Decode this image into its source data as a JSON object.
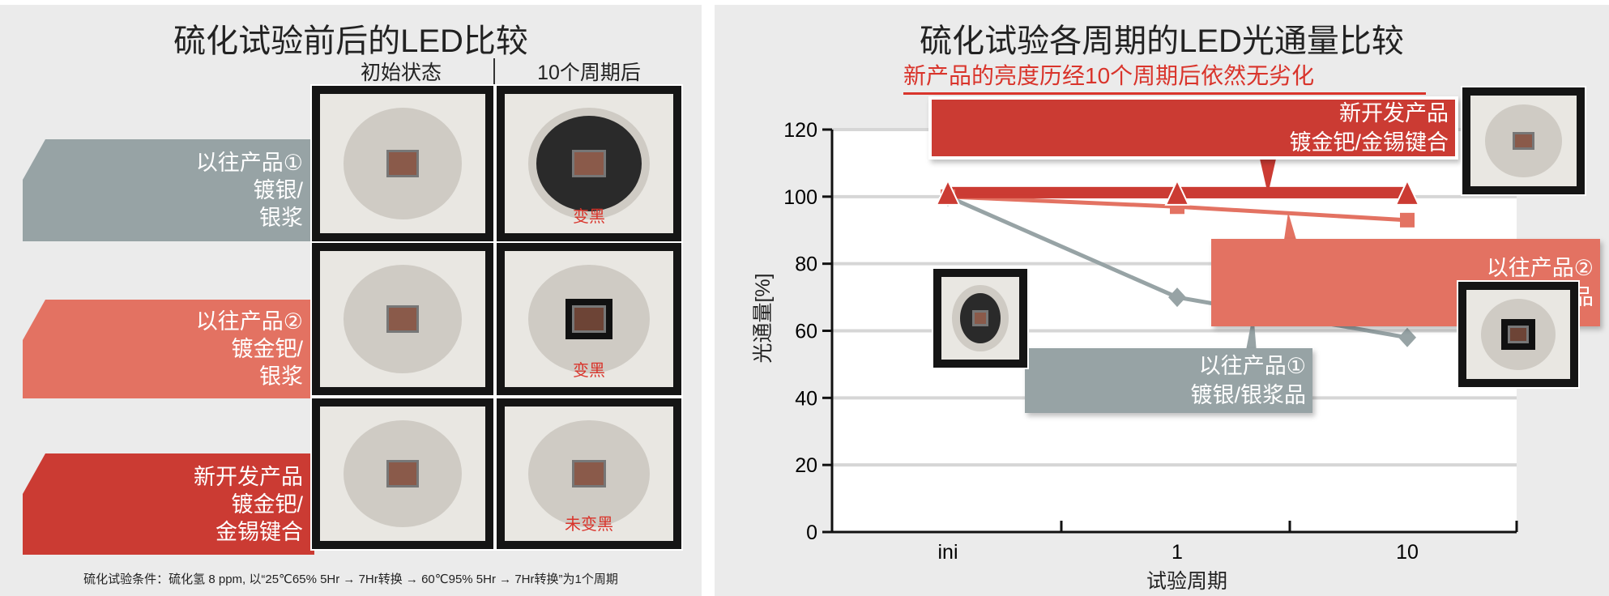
{
  "left_panel": {
    "title": "硫化试验前后的LED比较",
    "col_headers": [
      "初始状态",
      "10个周期后"
    ],
    "rows": [
      {
        "lines": [
          "以往产品①",
          "镀银/",
          "银浆"
        ],
        "color": "#97a3a5",
        "after_mark": "变黑"
      },
      {
        "lines": [
          "以往产品②",
          "镀金钯/",
          "银浆"
        ],
        "color": "#e37262",
        "after_mark": "变黑"
      },
      {
        "lines": [
          "新开发产品",
          "镀金钯/",
          "金锡键合"
        ],
        "color": "#cb3b33",
        "after_mark": "未变黑"
      }
    ],
    "footnote": "硫化试验条件：硫化氢 8 ppm, 以“25℃65% 5Hr → 7Hr转换 → 60℃95% 5Hr → 7Hr转换”为1个周期"
  },
  "right_panel": {
    "title": "硫化试验各周期的LED光通量比较",
    "subtitle": "新产品的亮度历经10个周期后依然无劣化",
    "callouts": [
      {
        "lines": [
          "新开发产品",
          "镀金钯/金锡键合"
        ],
        "color": "#cb3b33"
      },
      {
        "lines": [
          "以往产品②",
          "镀金钯/银浆品"
        ],
        "color": "#e37262"
      },
      {
        "lines": [
          "以往产品①",
          "镀银/银浆品"
        ],
        "color": "#97a3a5"
      }
    ]
  },
  "chart_data": {
    "type": "line",
    "xlabel": "试验周期",
    "ylabel": "光通量[%]",
    "categories": [
      "ini",
      "1",
      "10"
    ],
    "ylim": [
      0,
      120
    ],
    "yticks": [
      "0",
      "20",
      "40",
      "60",
      "80",
      "100",
      "120"
    ],
    "grid": true,
    "series": [
      {
        "name": "新开发产品 镀金钯/金锡键合",
        "values": [
          100,
          100,
          100
        ],
        "color": "#cb3b33",
        "marker": "triangle"
      },
      {
        "name": "以往产品② 镀金钯/银浆品",
        "values": [
          100,
          97,
          93
        ],
        "color": "#e37262",
        "marker": "square"
      },
      {
        "name": "以往产品① 镀银/银浆品",
        "values": [
          100,
          70,
          58
        ],
        "color": "#97a3a5",
        "marker": "diamond"
      }
    ]
  }
}
